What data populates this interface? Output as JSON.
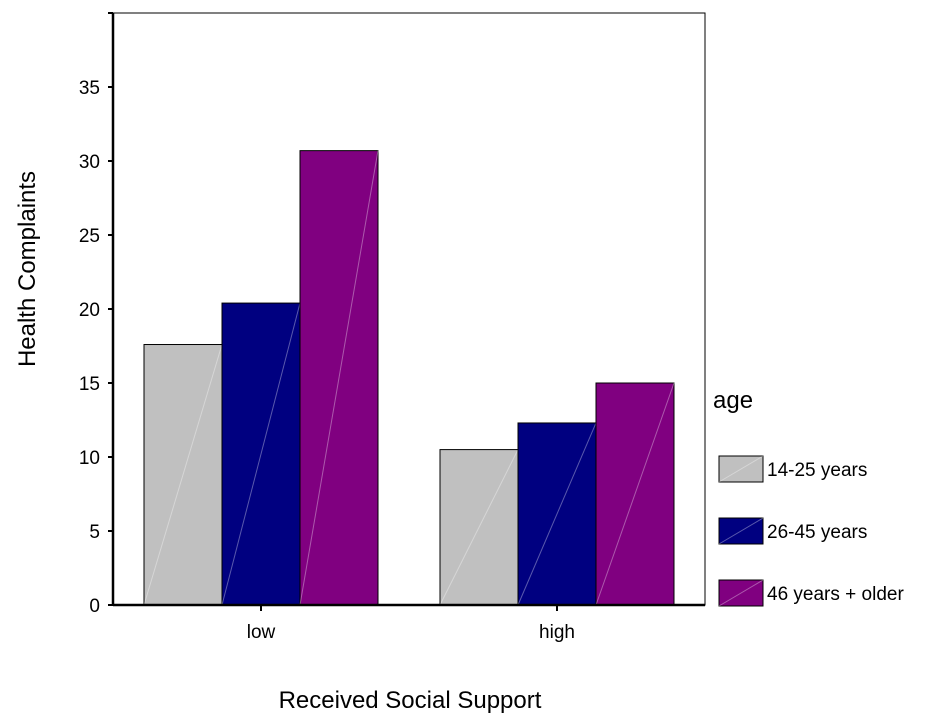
{
  "chart_data": {
    "type": "bar",
    "xlabel": "Received Social Support",
    "ylabel": "Health Complaints",
    "categories": [
      "low",
      "high"
    ],
    "series": [
      {
        "name": "14-25 years",
        "color": "#c0c0c0",
        "values": [
          17.6,
          10.5
        ]
      },
      {
        "name": "26-45 years",
        "color": "#000080",
        "values": [
          20.4,
          12.3
        ]
      },
      {
        "name": "46 years + older",
        "color": "#800080",
        "values": [
          30.7,
          15.0
        ]
      }
    ],
    "ylim": [
      0,
      40
    ],
    "yticks": [
      0,
      5,
      10,
      15,
      20,
      25,
      30,
      35
    ],
    "yticklabels": [
      "0",
      "5",
      "10",
      "15",
      "20",
      "25",
      "30",
      "35"
    ],
    "legend": {
      "title": "age",
      "position": "right"
    },
    "grid": false
  }
}
